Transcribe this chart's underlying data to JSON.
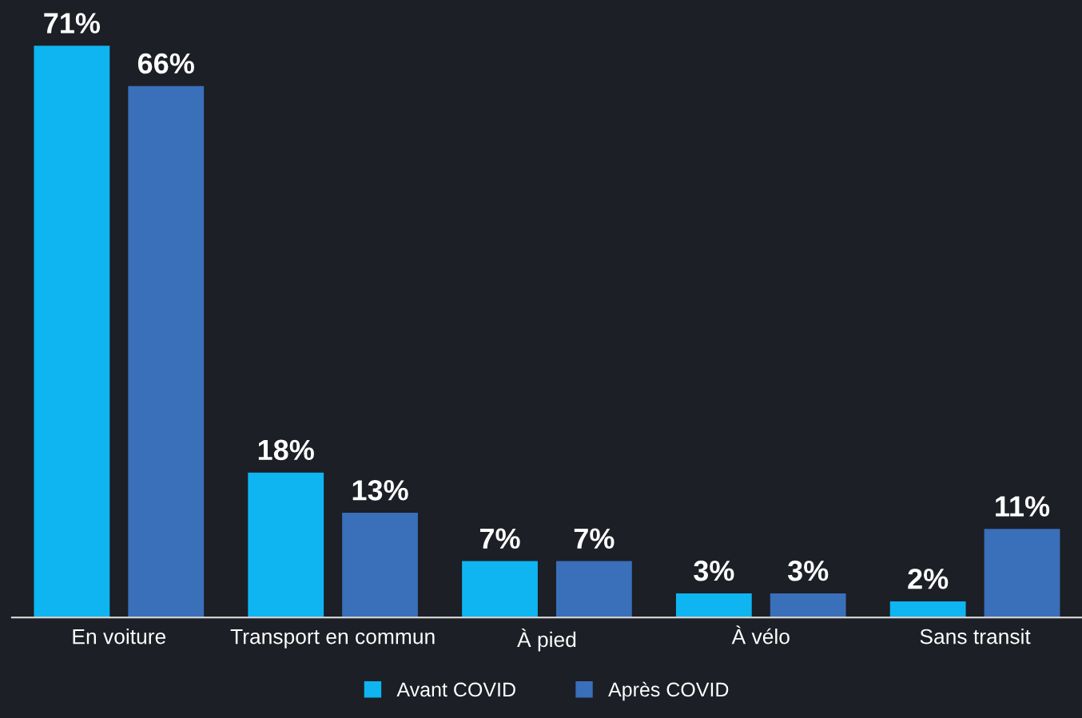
{
  "chart_data": {
    "type": "bar",
    "categories": [
      "En voiture",
      "Transport en commun",
      "À pied",
      "À vélo",
      "Sans transit"
    ],
    "series": [
      {
        "name": "Avant COVID",
        "color": "#0fb5f0",
        "values": [
          71,
          18,
          7,
          3,
          2
        ],
        "value_labels": [
          "71%",
          "18%",
          "7%",
          "3%",
          "2%"
        ]
      },
      {
        "name": "Après COVID",
        "color": "#3a6fba",
        "values": [
          66,
          13,
          7,
          3,
          11
        ],
        "value_labels": [
          "66%",
          "13%",
          "7%",
          "3%",
          "11%"
        ]
      }
    ],
    "legend": "bottom",
    "grid": false
  }
}
